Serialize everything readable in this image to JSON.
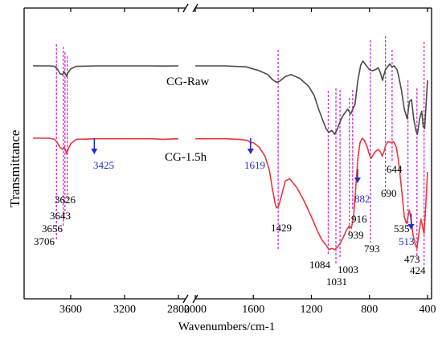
{
  "chart_data": {
    "type": "line",
    "xlabel": "Wavenumbers/cm-1",
    "ylabel": "Transmittance",
    "x_reversed": true,
    "x_broken_axis": true,
    "x_ticks": [
      3600,
      3200,
      2800,
      2000,
      1600,
      1200,
      800,
      400
    ],
    "series": [
      {
        "name": "CG-Raw",
        "color": "#4a4a4a",
        "points": [
          [
            3880,
            0.05
          ],
          [
            3760,
            0.05
          ],
          [
            3720,
            0.055
          ],
          [
            3700,
            0.08
          ],
          [
            3680,
            0.13
          ],
          [
            3660,
            0.14
          ],
          [
            3650,
            0.11
          ],
          [
            3640,
            0.13
          ],
          [
            3630,
            0.16
          ],
          [
            3620,
            0.12
          ],
          [
            3600,
            0.08
          ],
          [
            3560,
            0.055
          ],
          [
            3400,
            0.05
          ],
          [
            3000,
            0.05
          ],
          [
            2920,
            0.052
          ],
          [
            2800,
            0.05
          ],
          [
            2000,
            0.05
          ],
          [
            1800,
            0.05
          ],
          [
            1650,
            0.06
          ],
          [
            1560,
            0.1
          ],
          [
            1500,
            0.14
          ],
          [
            1470,
            0.19
          ],
          [
            1440,
            0.22
          ],
          [
            1420,
            0.21
          ],
          [
            1380,
            0.16
          ],
          [
            1340,
            0.14
          ],
          [
            1280,
            0.18
          ],
          [
            1220,
            0.26
          ],
          [
            1180,
            0.36
          ],
          [
            1150,
            0.5
          ],
          [
            1120,
            0.62
          ],
          [
            1100,
            0.7
          ],
          [
            1080,
            0.74
          ],
          [
            1060,
            0.72
          ],
          [
            1040,
            0.76
          ],
          [
            1020,
            0.7
          ],
          [
            1000,
            0.62
          ],
          [
            980,
            0.56
          ],
          [
            950,
            0.5
          ],
          [
            930,
            0.55
          ],
          [
            900,
            0.45
          ],
          [
            880,
            0.2
          ],
          [
            860,
            0.04
          ],
          [
            845,
            0.0
          ],
          [
            830,
            0.03
          ],
          [
            800,
            0.09
          ],
          [
            780,
            0.1
          ],
          [
            760,
            0.09
          ],
          [
            740,
            0.07
          ],
          [
            725,
            0.12
          ],
          [
            710,
            0.2
          ],
          [
            700,
            0.14
          ],
          [
            690,
            0.09
          ],
          [
            680,
            0.07
          ],
          [
            660,
            0.03
          ],
          [
            645,
            0.06
          ],
          [
            630,
            0.05
          ],
          [
            610,
            0.09
          ],
          [
            600,
            0.15
          ],
          [
            580,
            0.3
          ],
          [
            560,
            0.5
          ],
          [
            540,
            0.6
          ],
          [
            525,
            0.42
          ],
          [
            510,
            0.4
          ],
          [
            495,
            0.6
          ],
          [
            480,
            0.72
          ],
          [
            470,
            0.76
          ],
          [
            455,
            0.6
          ],
          [
            440,
            0.52
          ],
          [
            430,
            0.68
          ],
          [
            420,
            0.7
          ],
          [
            410,
            0.45
          ],
          [
            400,
            0.2
          ]
        ]
      },
      {
        "name": "CG-1.5h",
        "color": "#e8373b",
        "points": [
          [
            3880,
            0.0
          ],
          [
            3760,
            0.0
          ],
          [
            3720,
            0.01
          ],
          [
            3700,
            0.04
          ],
          [
            3680,
            0.08
          ],
          [
            3660,
            0.1
          ],
          [
            3650,
            0.08
          ],
          [
            3640,
            0.1
          ],
          [
            3630,
            0.14
          ],
          [
            3620,
            0.1
          ],
          [
            3600,
            0.05
          ],
          [
            3560,
            0.01
          ],
          [
            3400,
            0.005
          ],
          [
            3000,
            0.005
          ],
          [
            2920,
            0.01
          ],
          [
            2800,
            0.005
          ],
          [
            2000,
            0.005
          ],
          [
            1800,
            0.005
          ],
          [
            1700,
            0.01
          ],
          [
            1640,
            0.02
          ],
          [
            1620,
            0.04
          ],
          [
            1600,
            0.04
          ],
          [
            1560,
            0.08
          ],
          [
            1520,
            0.16
          ],
          [
            1490,
            0.28
          ],
          [
            1470,
            0.44
          ],
          [
            1450,
            0.58
          ],
          [
            1440,
            0.62
          ],
          [
            1425,
            0.6
          ],
          [
            1400,
            0.48
          ],
          [
            1380,
            0.38
          ],
          [
            1350,
            0.36
          ],
          [
            1300,
            0.44
          ],
          [
            1250,
            0.56
          ],
          [
            1200,
            0.7
          ],
          [
            1160,
            0.82
          ],
          [
            1130,
            0.9
          ],
          [
            1100,
            0.95
          ],
          [
            1080,
            0.99
          ],
          [
            1060,
            0.98
          ],
          [
            1040,
            0.99
          ],
          [
            1020,
            0.97
          ],
          [
            1000,
            0.93
          ],
          [
            980,
            0.88
          ],
          [
            960,
            0.82
          ],
          [
            940,
            0.78
          ],
          [
            925,
            0.8
          ],
          [
            910,
            0.7
          ],
          [
            895,
            0.45
          ],
          [
            880,
            0.18
          ],
          [
            865,
            0.04
          ],
          [
            850,
            0.0
          ],
          [
            835,
            0.02
          ],
          [
            815,
            0.08
          ],
          [
            800,
            0.15
          ],
          [
            790,
            0.18
          ],
          [
            775,
            0.15
          ],
          [
            760,
            0.12
          ],
          [
            740,
            0.1
          ],
          [
            725,
            0.12
          ],
          [
            712,
            0.16
          ],
          [
            700,
            0.12
          ],
          [
            688,
            0.06
          ],
          [
            670,
            0.03
          ],
          [
            650,
            0.04
          ],
          [
            635,
            0.03
          ],
          [
            615,
            0.08
          ],
          [
            600,
            0.2
          ],
          [
            580,
            0.44
          ],
          [
            560,
            0.7
          ],
          [
            545,
            0.76
          ],
          [
            535,
            0.7
          ],
          [
            525,
            0.64
          ],
          [
            513,
            0.72
          ],
          [
            500,
            0.86
          ],
          [
            485,
            0.94
          ],
          [
            473,
            0.98
          ],
          [
            460,
            0.85
          ],
          [
            445,
            0.72
          ],
          [
            432,
            0.8
          ],
          [
            424,
            0.85
          ],
          [
            412,
            0.6
          ],
          [
            400,
            0.3
          ]
        ]
      }
    ],
    "peaks_dashed": [
      3706,
      3656,
      3643,
      3626,
      1429,
      1084,
      1031,
      1003,
      939,
      916,
      793,
      690,
      644,
      535,
      473,
      424
    ],
    "peaks_arrow": [
      3425,
      1619,
      882,
      513
    ],
    "peak_labels": [
      {
        "text": "3706",
        "color": "#000000"
      },
      {
        "text": "3656",
        "color": "#000000"
      },
      {
        "text": "3643",
        "color": "#000000"
      },
      {
        "text": "3626",
        "color": "#000000"
      },
      {
        "text": "3425",
        "color": "#1f2ecc"
      },
      {
        "text": "1619",
        "color": "#1f2ecc"
      },
      {
        "text": "1429",
        "color": "#000000"
      },
      {
        "text": "1084",
        "color": "#000000"
      },
      {
        "text": "1031",
        "color": "#000000"
      },
      {
        "text": "1003",
        "color": "#000000"
      },
      {
        "text": "939",
        "color": "#000000"
      },
      {
        "text": "916",
        "color": "#000000"
      },
      {
        "text": "882",
        "color": "#1f2ecc"
      },
      {
        "text": "793",
        "color": "#000000"
      },
      {
        "text": "690",
        "color": "#000000"
      },
      {
        "text": "644",
        "color": "#000000"
      },
      {
        "text": "535",
        "color": "#000000"
      },
      {
        "text": "513",
        "color": "#1f2ecc"
      },
      {
        "text": "473",
        "color": "#000000"
      },
      {
        "text": "424",
        "color": "#000000"
      }
    ],
    "dashed_line_color": "#cc33cc",
    "arrow_color": "#1f2ecc"
  }
}
